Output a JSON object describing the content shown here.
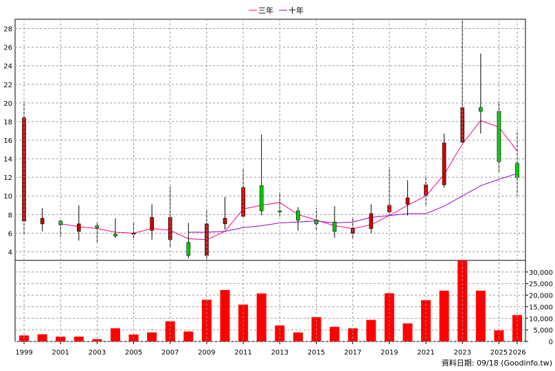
{
  "legend": [
    {
      "label": "三年",
      "color": "#ff0080"
    },
    {
      "label": "十年",
      "color": "#9900cc"
    }
  ],
  "source_note": "資料日期: 09/18 (Goodinfo.tw)",
  "colors": {
    "up": "#cc0000",
    "down": "#00cc00",
    "volume": "#ff0000",
    "grid": "#999999"
  },
  "chart_data": [
    {
      "type": "candlestick",
      "x_tick_labels": [
        "1999",
        "2001",
        "2003",
        "2005",
        "2007",
        "2009",
        "2011",
        "2013",
        "2015",
        "2017",
        "2019",
        "2021",
        "2023",
        "2025",
        "2026"
      ],
      "x_tick_years": [
        1999,
        2001,
        2003,
        2005,
        2007,
        2009,
        2011,
        2013,
        2015,
        2017,
        2019,
        2021,
        2023,
        2025,
        2026
      ],
      "ylim": [
        3,
        29
      ],
      "y_ticks": [
        4,
        6,
        8,
        10,
        12,
        14,
        16,
        18,
        20,
        22,
        24,
        26,
        28
      ],
      "candles": [
        {
          "year": 1999,
          "open": 7.3,
          "close": 18.4,
          "high": 20.2,
          "low": 5.8
        },
        {
          "year": 2000,
          "open": 7.0,
          "close": 7.6,
          "high": 8.7,
          "low": 6.2
        },
        {
          "year": 2001,
          "open": 7.3,
          "close": 6.9,
          "high": 7.4,
          "low": 5.6
        },
        {
          "year": 2002,
          "open": 6.2,
          "close": 7.0,
          "high": 9.0,
          "low": 5.2
        },
        {
          "year": 2003,
          "open": 6.8,
          "close": 6.6,
          "high": 7.1,
          "low": 5.0
        },
        {
          "year": 2004,
          "open": 5.9,
          "close": 5.7,
          "high": 7.6,
          "low": 5.5
        },
        {
          "year": 2005,
          "open": 6.0,
          "close": 6.0,
          "high": 7.1,
          "low": 5.5
        },
        {
          "year": 2006,
          "open": 6.3,
          "close": 7.7,
          "high": 9.1,
          "low": 5.3
        },
        {
          "year": 2007,
          "open": 5.3,
          "close": 7.7,
          "high": 11.0,
          "low": 4.4
        },
        {
          "year": 2008,
          "open": 5.0,
          "close": 3.6,
          "high": 7.1,
          "low": 3.3
        },
        {
          "year": 2009,
          "open": 3.6,
          "close": 7.0,
          "high": 8.6,
          "low": 3.0
        },
        {
          "year": 2010,
          "open": 7.0,
          "close": 7.6,
          "high": 9.9,
          "low": 6.4
        },
        {
          "year": 2011,
          "open": 7.8,
          "close": 10.9,
          "high": 13.0,
          "low": 7.8
        },
        {
          "year": 2012,
          "open": 11.1,
          "close": 8.4,
          "high": 16.6,
          "low": 7.9
        },
        {
          "year": 2013,
          "open": 8.4,
          "close": 8.3,
          "high": 10.4,
          "low": 7.8
        },
        {
          "year": 2014,
          "open": 8.4,
          "close": 7.4,
          "high": 8.8,
          "low": 6.3
        },
        {
          "year": 2015,
          "open": 7.4,
          "close": 7.0,
          "high": 8.7,
          "low": 6.2
        },
        {
          "year": 2016,
          "open": 7.2,
          "close": 6.2,
          "high": 8.9,
          "low": 5.5
        },
        {
          "year": 2017,
          "open": 6.0,
          "close": 6.5,
          "high": 7.7,
          "low": 5.4
        },
        {
          "year": 2018,
          "open": 6.5,
          "close": 8.1,
          "high": 9.1,
          "low": 6.0
        },
        {
          "year": 2019,
          "open": 8.3,
          "close": 9.0,
          "high": 13.1,
          "low": 7.9
        },
        {
          "year": 2020,
          "open": 9.1,
          "close": 9.8,
          "high": 11.7,
          "low": 7.9
        },
        {
          "year": 2021,
          "open": 10.1,
          "close": 11.2,
          "high": 12.2,
          "low": 8.9
        },
        {
          "year": 2022,
          "open": 11.2,
          "close": 15.7,
          "high": 16.7,
          "low": 10.9
        },
        {
          "year": 2023,
          "open": 15.8,
          "close": 19.5,
          "high": 28.9,
          "low": 15.5
        },
        {
          "year": 2024,
          "open": 19.5,
          "close": 19.1,
          "high": 25.3,
          "low": 16.7
        },
        {
          "year": 2025,
          "open": 19.1,
          "close": 13.7,
          "high": 20.2,
          "low": 12.6
        },
        {
          "year": 2026,
          "open": 13.5,
          "close": 12.0,
          "high": 17.1,
          "low": 10.0
        }
      ],
      "series": [
        {
          "name": "三年",
          "color": "#ff0080",
          "x": [
            2001,
            2002,
            2003,
            2004,
            2005,
            2006,
            2007,
            2008,
            2009,
            2010,
            2011,
            2012,
            2013,
            2014,
            2015,
            2016,
            2017,
            2018,
            2019,
            2020,
            2021,
            2022,
            2023,
            2024,
            2025,
            2026
          ],
          "y": [
            7.0,
            6.7,
            6.5,
            6.1,
            6.0,
            6.5,
            6.3,
            5.4,
            5.3,
            6.2,
            8.6,
            9.0,
            9.3,
            8.0,
            7.4,
            6.8,
            6.5,
            6.9,
            7.9,
            9.0,
            10.0,
            12.3,
            15.6,
            18.1,
            17.4,
            14.8
          ]
        },
        {
          "name": "十年",
          "color": "#9900cc",
          "x": [
            2008,
            2009,
            2010,
            2011,
            2012,
            2013,
            2014,
            2015,
            2016,
            2017,
            2018,
            2019,
            2020,
            2021,
            2022,
            2023,
            2024,
            2025,
            2026
          ],
          "y": [
            6.1,
            6.1,
            6.2,
            6.6,
            6.8,
            7.1,
            7.2,
            7.3,
            7.1,
            7.2,
            7.7,
            7.9,
            8.1,
            8.1,
            8.9,
            10.0,
            11.1,
            11.8,
            12.4
          ]
        }
      ]
    },
    {
      "type": "bar",
      "ylim": [
        0,
        35000
      ],
      "y_ticks": [
        0,
        5000,
        10000,
        15000,
        20000,
        25000,
        30000
      ],
      "y_tick_labels": [
        "0",
        "5,000",
        "10,000",
        "15,000",
        "20,000",
        "25,000",
        "30,000"
      ],
      "x": [
        1999,
        2000,
        2001,
        2002,
        2003,
        2004,
        2005,
        2006,
        2007,
        2008,
        2009,
        2010,
        2011,
        2012,
        2013,
        2014,
        2015,
        2016,
        2017,
        2018,
        2019,
        2020,
        2021,
        2022,
        2023,
        2024,
        2025,
        2026
      ],
      "values": [
        2600,
        3100,
        2100,
        2100,
        1000,
        5700,
        3000,
        3900,
        8700,
        4300,
        18000,
        22200,
        15900,
        20700,
        6900,
        3900,
        10500,
        6300,
        5700,
        9300,
        20800,
        7800,
        17800,
        21900,
        35000,
        21900,
        4800,
        11400
      ]
    }
  ]
}
